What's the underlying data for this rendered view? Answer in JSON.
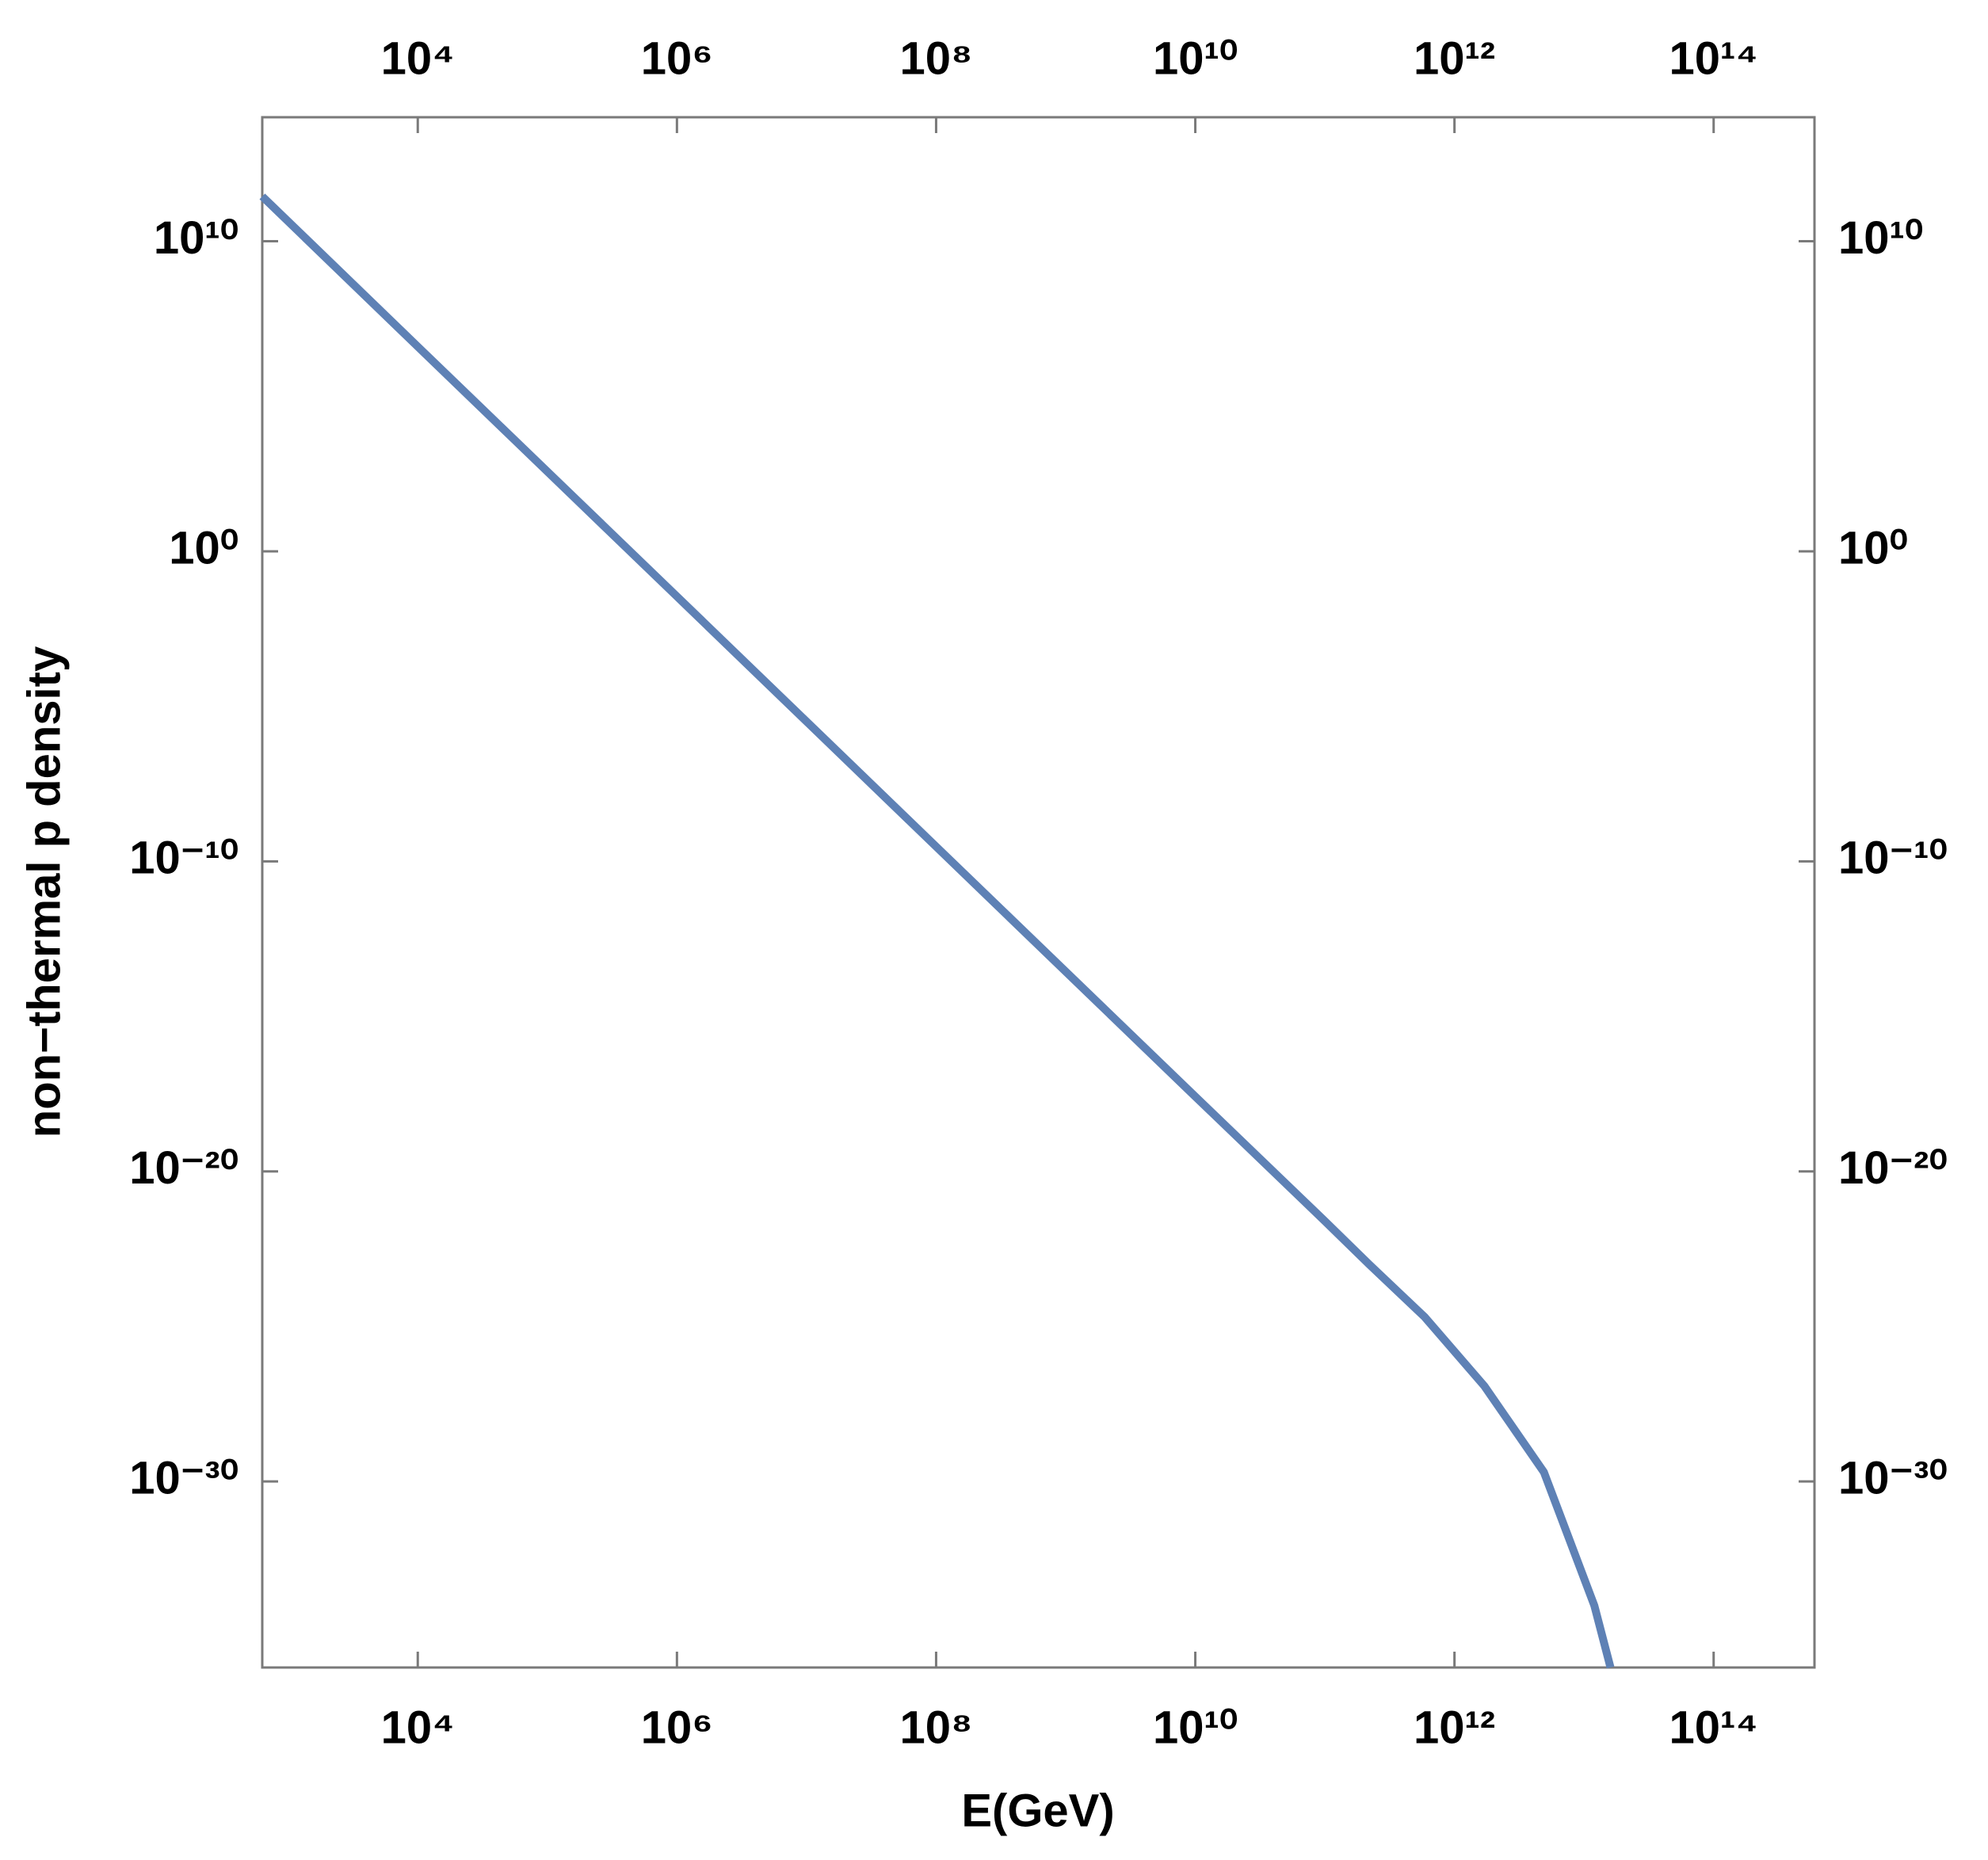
{
  "chart_data": {
    "type": "line",
    "x_label": "E(GeV)",
    "y_label": "non−thermal p density",
    "xscale": "log",
    "yscale": "log",
    "xlim": [
      631,
      600000000000000.0
    ],
    "ylim": [
      1e-36,
      100000000000000.0
    ],
    "xticks": [
      {
        "value": 10000.0,
        "label": "10⁴"
      },
      {
        "value": 1000000.0,
        "label": "10⁶"
      },
      {
        "value": 100000000.0,
        "label": "10⁸"
      },
      {
        "value": 10000000000.0,
        "label": "10¹⁰"
      },
      {
        "value": 1000000000000.0,
        "label": "10¹²"
      },
      {
        "value": 100000000000000.0,
        "label": "10¹⁴"
      }
    ],
    "yticks": [
      {
        "value": 10000000000.0,
        "label": "10¹⁰"
      },
      {
        "value": 1,
        "label": "10⁰"
      },
      {
        "value": 1e-10,
        "label": "10⁻¹⁰"
      },
      {
        "value": 1e-20,
        "label": "10⁻²⁰"
      },
      {
        "value": 1e-30,
        "label": "10⁻³⁰"
      }
    ],
    "series": [
      {
        "color": "#5e81b5",
        "x": [
          631,
          10000.0,
          1000000.0,
          100000000.0,
          10000000000.0,
          100000000000.0,
          220000000000.0,
          590000000000.0,
          1700000000000.0,
          4900000000000.0,
          12000000000000.0,
          16000000000000.0
        ],
        "values": [
          280000000000.0,
          4000000.0,
          0.035,
          3e-10,
          2.6e-18,
          2.5e-22,
          1e-23,
          2e-25,
          1.2e-27,
          2e-30,
          1e-34,
          1e-36
        ]
      }
    ]
  }
}
